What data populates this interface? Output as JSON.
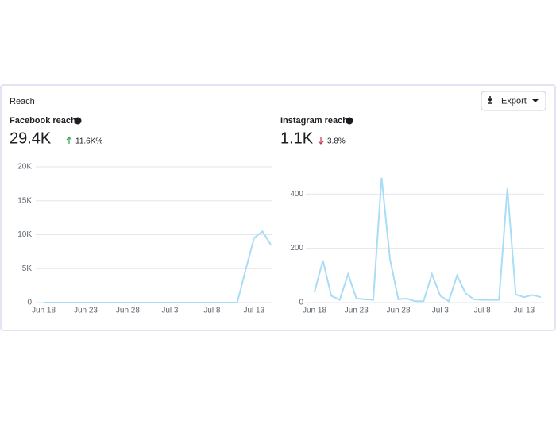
{
  "header": {
    "title": "Reach",
    "export": "Export"
  },
  "chart_data": [
    {
      "type": "line",
      "title": "Facebook reach",
      "total": "29.4K",
      "change": "11.6K%",
      "change_color": "#31a24c",
      "categories": [
        "Jun 18",
        null,
        null,
        null,
        null,
        "Jun 23",
        null,
        null,
        null,
        null,
        "Jun 28",
        null,
        null,
        null,
        null,
        "Jul 3",
        null,
        null,
        null,
        null,
        "Jul 8",
        null,
        null,
        null,
        null,
        "Jul 13",
        null,
        null
      ],
      "values": [
        0,
        0,
        0,
        0,
        0,
        0,
        0,
        0,
        0,
        0,
        0,
        0,
        0,
        0,
        0,
        0,
        0,
        0,
        0,
        0,
        0,
        0,
        0,
        0,
        4800,
        9500,
        10500,
        8500
      ],
      "color": "#a8ddf5",
      "ylim": [
        0,
        20000
      ],
      "yticks": [
        0,
        {
          "value": 5000,
          "label": "5K"
        },
        {
          "value": 10000,
          "label": "10K"
        },
        {
          "value": 15000,
          "label": "15K"
        },
        {
          "value": 20000,
          "label": "20K"
        }
      ],
      "grid": true
    },
    {
      "type": "line",
      "title": "Instagram reach",
      "total": "1.1K",
      "change": "3.8%",
      "change_color": "#c0384d",
      "categories": [
        "Jun 18",
        null,
        null,
        null,
        null,
        "Jun 23",
        null,
        null,
        null,
        null,
        "Jun 28",
        null,
        null,
        null,
        null,
        "Jul 3",
        null,
        null,
        null,
        null,
        "Jul 8",
        null,
        null,
        null,
        null,
        "Jul 13",
        null,
        null
      ],
      "values": [
        40,
        155,
        25,
        10,
        105,
        15,
        12,
        10,
        460,
        160,
        12,
        15,
        5,
        5,
        105,
        25,
        5,
        100,
        35,
        12,
        10,
        10,
        10,
        420,
        30,
        20,
        28,
        20
      ],
      "color": "#a8ddf5",
      "ylim": [
        0,
        500
      ],
      "yticks": [
        0,
        200,
        400
      ],
      "grid": true
    }
  ]
}
